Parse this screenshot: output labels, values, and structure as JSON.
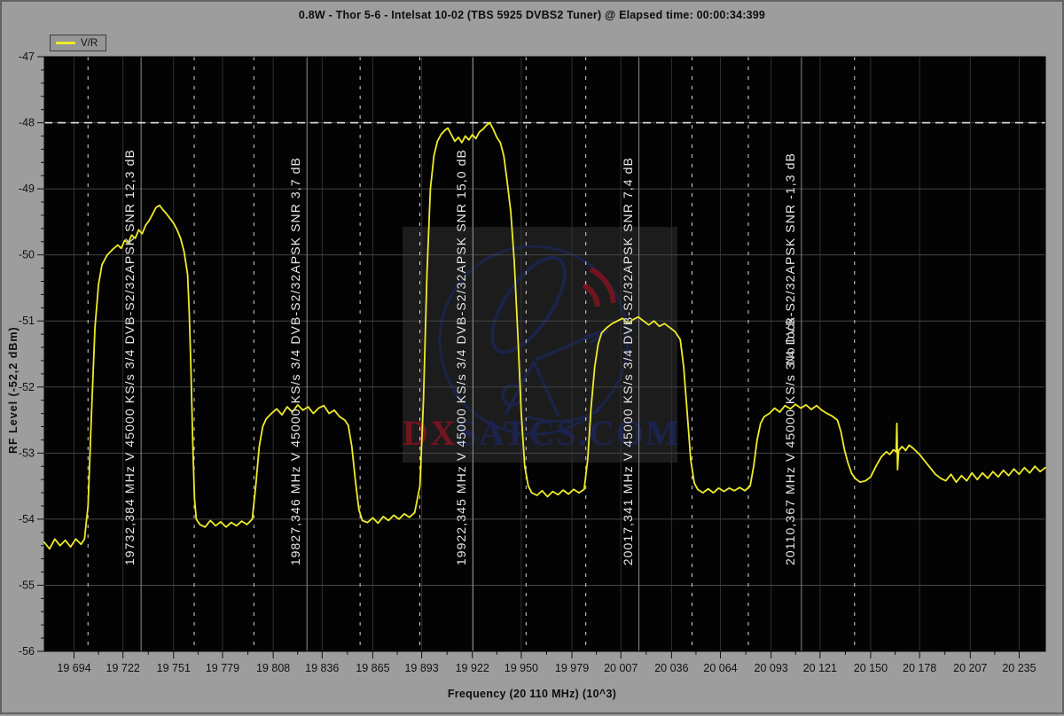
{
  "header": {
    "title": "0.8W - Thor 5-6 - Intelsat 10-02 (TBS 5925 DVBS2 Tuner) @ Elapsed time: 00:00:34:399"
  },
  "legend": {
    "label": "V/R"
  },
  "watermark": {
    "text_red": "DX",
    "text_rest": "SATCS.COM"
  },
  "chart_data": {
    "type": "line",
    "title": "0.8W - Thor 5-6 - Intelsat 10-02 (TBS 5925 DVBS2 Tuner) @ Elapsed time: 00:00:34:399",
    "xlabel": "Frequency  (20 110 MHz)  (10^3)",
    "ylabel": "RF Level (-52,2 dBm)",
    "legend_entry": "V/R",
    "xlim": [
      19677,
      20250
    ],
    "ylim": [
      -56,
      -47
    ],
    "x_ticks": [
      {
        "v": 19694,
        "label": "19 694"
      },
      {
        "v": 19722,
        "label": "19 722"
      },
      {
        "v": 19751,
        "label": "19 751"
      },
      {
        "v": 19779,
        "label": "19 779"
      },
      {
        "v": 19808,
        "label": "19 808"
      },
      {
        "v": 19836,
        "label": "19 836"
      },
      {
        "v": 19865,
        "label": "19 865"
      },
      {
        "v": 19893,
        "label": "19 893"
      },
      {
        "v": 19922,
        "label": "19 922"
      },
      {
        "v": 19950,
        "label": "19 950"
      },
      {
        "v": 19979,
        "label": "19 979"
      },
      {
        "v": 20007,
        "label": "20 007"
      },
      {
        "v": 20036,
        "label": "20 036"
      },
      {
        "v": 20064,
        "label": "20 064"
      },
      {
        "v": 20093,
        "label": "20 093"
      },
      {
        "v": 20121,
        "label": "20 121"
      },
      {
        "v": 20150,
        "label": "20 150"
      },
      {
        "v": 20178,
        "label": "20 178"
      },
      {
        "v": 20207,
        "label": "20 207"
      },
      {
        "v": 20235,
        "label": "20 235"
      }
    ],
    "y_tick_step": 1,
    "y_minor_step": 0.2,
    "grid": true,
    "legend_position": "top-left",
    "marker_level_db": -48,
    "edge_offset_mhz": 30.4,
    "colors": {
      "trace": "#f0ec28",
      "marker_dash": "#e8e8e8",
      "edge_dash": "#d6d6d6",
      "center_line": "#8c8c8c",
      "grid_h": "#454545",
      "grid_v": "#303030",
      "tick": "#111111",
      "tick_text": "#111111"
    },
    "transponders": [
      {
        "center_mhz": 19732.384,
        "snr_db": "12,3",
        "label": "19732,384 MHz V 45000 KS/s 3/4 DVB-S2/32APSK SNR 12,3 dB"
      },
      {
        "center_mhz": 19827.346,
        "snr_db": "3,7",
        "label": "19827,346 MHz V 45000 KS/s 3/4 DVB-S2/32APSK SNR 3,7 dB"
      },
      {
        "center_mhz": 19922.345,
        "snr_db": "15,0",
        "label": "19922,345 MHz V 45000 KS/s 3/4 DVB-S2/32APSK SNR 15,0 dB"
      },
      {
        "center_mhz": 20017.341,
        "snr_db": "7,4",
        "label": "20017,341 MHz V 45000 KS/s 3/4 DVB-S2/32APSK SNR 7,4 dB"
      },
      {
        "center_mhz": 20110.367,
        "snr_db": "-1,3",
        "label": "20110,367 MHz V 45000 KS/s 3/4 DVB-S2/32APSK SNR -1,3 dB",
        "overlay": "No lock"
      }
    ],
    "trace": [
      [
        19677,
        -54.35
      ],
      [
        19680,
        -54.45
      ],
      [
        19683,
        -54.3
      ],
      [
        19686,
        -54.4
      ],
      [
        19689,
        -54.32
      ],
      [
        19692,
        -54.42
      ],
      [
        19695,
        -54.3
      ],
      [
        19698,
        -54.38
      ],
      [
        19700,
        -54.3
      ],
      [
        19702,
        -53.8
      ],
      [
        19704,
        -52.4
      ],
      [
        19706,
        -51.1
      ],
      [
        19708,
        -50.45
      ],
      [
        19710,
        -50.15
      ],
      [
        19713,
        -50.0
      ],
      [
        19716,
        -49.92
      ],
      [
        19719,
        -49.85
      ],
      [
        19721,
        -49.9
      ],
      [
        19723,
        -49.78
      ],
      [
        19725,
        -49.82
      ],
      [
        19727,
        -49.7
      ],
      [
        19729,
        -49.75
      ],
      [
        19731,
        -49.62
      ],
      [
        19733,
        -49.68
      ],
      [
        19735,
        -49.55
      ],
      [
        19737,
        -49.48
      ],
      [
        19739,
        -49.38
      ],
      [
        19741,
        -49.28
      ],
      [
        19743,
        -49.25
      ],
      [
        19745,
        -49.32
      ],
      [
        19747,
        -49.38
      ],
      [
        19749,
        -49.45
      ],
      [
        19751,
        -49.52
      ],
      [
        19753,
        -49.62
      ],
      [
        19755,
        -49.75
      ],
      [
        19757,
        -49.95
      ],
      [
        19759,
        -50.3
      ],
      [
        19760,
        -50.9
      ],
      [
        19761,
        -51.8
      ],
      [
        19762,
        -52.9
      ],
      [
        19763,
        -53.7
      ],
      [
        19764,
        -54.0
      ],
      [
        19766,
        -54.08
      ],
      [
        19769,
        -54.12
      ],
      [
        19772,
        -54.02
      ],
      [
        19775,
        -54.1
      ],
      [
        19778,
        -54.04
      ],
      [
        19781,
        -54.12
      ],
      [
        19784,
        -54.05
      ],
      [
        19787,
        -54.1
      ],
      [
        19790,
        -54.03
      ],
      [
        19793,
        -54.08
      ],
      [
        19796,
        -54.0
      ],
      [
        19798,
        -53.5
      ],
      [
        19800,
        -52.9
      ],
      [
        19802,
        -52.6
      ],
      [
        19804,
        -52.48
      ],
      [
        19807,
        -52.4
      ],
      [
        19810,
        -52.33
      ],
      [
        19813,
        -52.42
      ],
      [
        19816,
        -52.3
      ],
      [
        19819,
        -52.38
      ],
      [
        19822,
        -52.27
      ],
      [
        19825,
        -52.35
      ],
      [
        19828,
        -52.3
      ],
      [
        19831,
        -52.4
      ],
      [
        19834,
        -52.32
      ],
      [
        19837,
        -52.28
      ],
      [
        19840,
        -52.4
      ],
      [
        19843,
        -52.35
      ],
      [
        19846,
        -52.45
      ],
      [
        19849,
        -52.5
      ],
      [
        19851,
        -52.58
      ],
      [
        19853,
        -52.9
      ],
      [
        19855,
        -53.4
      ],
      [
        19857,
        -53.85
      ],
      [
        19859,
        -54.02
      ],
      [
        19862,
        -54.05
      ],
      [
        19865,
        -53.98
      ],
      [
        19868,
        -54.06
      ],
      [
        19871,
        -53.96
      ],
      [
        19874,
        -54.02
      ],
      [
        19877,
        -53.94
      ],
      [
        19880,
        -54.0
      ],
      [
        19883,
        -53.92
      ],
      [
        19886,
        -53.97
      ],
      [
        19889,
        -53.9
      ],
      [
        19892,
        -53.5
      ],
      [
        19894,
        -52.2
      ],
      [
        19896,
        -50.3
      ],
      [
        19898,
        -49.0
      ],
      [
        19900,
        -48.5
      ],
      [
        19902,
        -48.28
      ],
      [
        19904,
        -48.18
      ],
      [
        19906,
        -48.12
      ],
      [
        19908,
        -48.08
      ],
      [
        19910,
        -48.18
      ],
      [
        19912,
        -48.28
      ],
      [
        19914,
        -48.22
      ],
      [
        19916,
        -48.3
      ],
      [
        19918,
        -48.2
      ],
      [
        19920,
        -48.26
      ],
      [
        19922,
        -48.18
      ],
      [
        19924,
        -48.24
      ],
      [
        19926,
        -48.14
      ],
      [
        19928,
        -48.1
      ],
      [
        19930,
        -48.04
      ],
      [
        19932,
        -48.0
      ],
      [
        19934,
        -48.1
      ],
      [
        19936,
        -48.22
      ],
      [
        19938,
        -48.3
      ],
      [
        19940,
        -48.5
      ],
      [
        19942,
        -48.9
      ],
      [
        19944,
        -49.35
      ],
      [
        19946,
        -50.1
      ],
      [
        19948,
        -51.2
      ],
      [
        19950,
        -52.4
      ],
      [
        19952,
        -53.2
      ],
      [
        19954,
        -53.5
      ],
      [
        19956,
        -53.6
      ],
      [
        19959,
        -53.64
      ],
      [
        19962,
        -53.57
      ],
      [
        19965,
        -53.66
      ],
      [
        19968,
        -53.58
      ],
      [
        19971,
        -53.63
      ],
      [
        19974,
        -53.56
      ],
      [
        19977,
        -53.62
      ],
      [
        19980,
        -53.55
      ],
      [
        19983,
        -53.6
      ],
      [
        19986,
        -53.55
      ],
      [
        19988,
        -53.1
      ],
      [
        19990,
        -52.3
      ],
      [
        19992,
        -51.7
      ],
      [
        19994,
        -51.35
      ],
      [
        19996,
        -51.18
      ],
      [
        19999,
        -51.1
      ],
      [
        20002,
        -51.04
      ],
      [
        20005,
        -51.0
      ],
      [
        20008,
        -50.96
      ],
      [
        20011,
        -51.04
      ],
      [
        20014,
        -50.98
      ],
      [
        20017,
        -50.94
      ],
      [
        20020,
        -51.0
      ],
      [
        20023,
        -51.06
      ],
      [
        20026,
        -51.0
      ],
      [
        20029,
        -51.08
      ],
      [
        20032,
        -51.04
      ],
      [
        20035,
        -51.1
      ],
      [
        20038,
        -51.16
      ],
      [
        20041,
        -51.28
      ],
      [
        20043,
        -51.7
      ],
      [
        20045,
        -52.4
      ],
      [
        20047,
        -53.1
      ],
      [
        20049,
        -53.45
      ],
      [
        20051,
        -53.55
      ],
      [
        20054,
        -53.6
      ],
      [
        20057,
        -53.54
      ],
      [
        20060,
        -53.6
      ],
      [
        20063,
        -53.53
      ],
      [
        20066,
        -53.58
      ],
      [
        20069,
        -53.53
      ],
      [
        20072,
        -53.57
      ],
      [
        20075,
        -53.52
      ],
      [
        20078,
        -53.57
      ],
      [
        20081,
        -53.5
      ],
      [
        20083,
        -53.2
      ],
      [
        20085,
        -52.8
      ],
      [
        20087,
        -52.55
      ],
      [
        20089,
        -52.45
      ],
      [
        20092,
        -52.4
      ],
      [
        20095,
        -52.32
      ],
      [
        20098,
        -52.38
      ],
      [
        20101,
        -52.28
      ],
      [
        20104,
        -52.33
      ],
      [
        20107,
        -52.26
      ],
      [
        20110,
        -52.32
      ],
      [
        20113,
        -52.27
      ],
      [
        20116,
        -52.34
      ],
      [
        20119,
        -52.28
      ],
      [
        20122,
        -52.35
      ],
      [
        20125,
        -52.4
      ],
      [
        20128,
        -52.44
      ],
      [
        20131,
        -52.5
      ],
      [
        20133,
        -52.68
      ],
      [
        20135,
        -52.95
      ],
      [
        20137,
        -53.15
      ],
      [
        20139,
        -53.3
      ],
      [
        20141,
        -53.38
      ],
      [
        20144,
        -53.44
      ],
      [
        20147,
        -53.42
      ],
      [
        20150,
        -53.36
      ],
      [
        20153,
        -53.2
      ],
      [
        20156,
        -53.06
      ],
      [
        20159,
        -52.98
      ],
      [
        20161,
        -53.02
      ],
      [
        20163,
        -52.95
      ],
      [
        20164.6,
        -52.98
      ],
      [
        20165,
        -52.55
      ],
      [
        20165.4,
        -53.25
      ],
      [
        20166,
        -52.96
      ],
      [
        20168,
        -52.9
      ],
      [
        20170,
        -52.96
      ],
      [
        20172,
        -52.88
      ],
      [
        20174,
        -52.92
      ],
      [
        20176,
        -52.97
      ],
      [
        20178,
        -53.02
      ],
      [
        20181,
        -53.12
      ],
      [
        20184,
        -53.22
      ],
      [
        20187,
        -53.32
      ],
      [
        20190,
        -53.38
      ],
      [
        20193,
        -53.42
      ],
      [
        20196,
        -53.32
      ],
      [
        20199,
        -53.44
      ],
      [
        20202,
        -53.34
      ],
      [
        20205,
        -53.42
      ],
      [
        20208,
        -53.3
      ],
      [
        20211,
        -53.4
      ],
      [
        20214,
        -53.3
      ],
      [
        20217,
        -53.38
      ],
      [
        20220,
        -53.28
      ],
      [
        20223,
        -53.36
      ],
      [
        20226,
        -53.26
      ],
      [
        20229,
        -53.34
      ],
      [
        20232,
        -53.24
      ],
      [
        20235,
        -53.32
      ],
      [
        20238,
        -53.22
      ],
      [
        20241,
        -53.3
      ],
      [
        20244,
        -53.2
      ],
      [
        20247,
        -53.28
      ],
      [
        20250,
        -53.22
      ]
    ]
  }
}
